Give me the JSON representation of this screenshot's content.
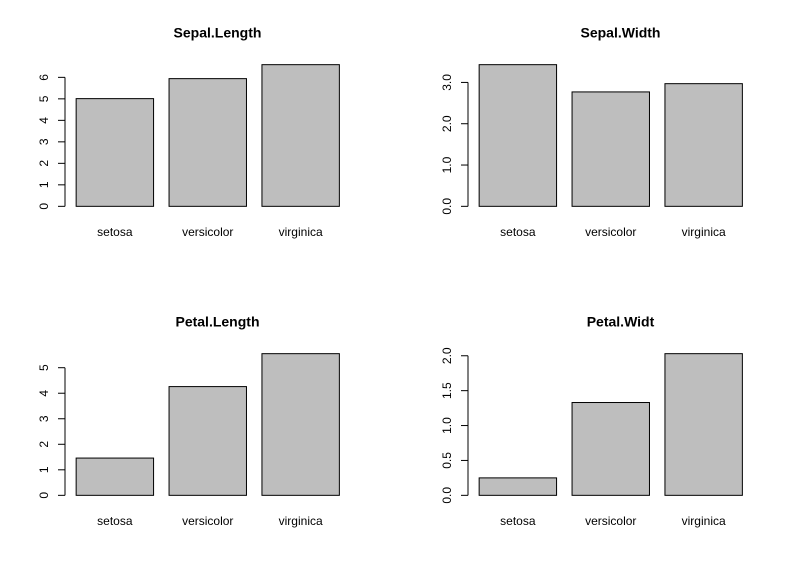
{
  "chart_data": [
    {
      "type": "bar",
      "title": "Sepal.Length",
      "categories": [
        "setosa",
        "versicolor",
        "virginica"
      ],
      "values": [
        5.01,
        5.94,
        6.59
      ],
      "color": "#bebebe",
      "ylim": [
        0,
        6.59
      ],
      "yticks": [
        0,
        1,
        2,
        3,
        4,
        5,
        6
      ]
    },
    {
      "type": "bar",
      "title": "Sepal.Width",
      "categories": [
        "setosa",
        "versicolor",
        "virginica"
      ],
      "values": [
        3.43,
        2.77,
        2.97
      ],
      "color": "#bebebe",
      "ylim": [
        0,
        3.43
      ],
      "yticks": [
        {
          "value": 0,
          "label": "0.0"
        },
        {
          "value": 1,
          "label": "1.0"
        },
        {
          "value": 2,
          "label": "2.0"
        },
        {
          "value": 3,
          "label": "3.0"
        }
      ]
    },
    {
      "type": "bar",
      "title": "Petal.Length",
      "categories": [
        "setosa",
        "versicolor",
        "virginica"
      ],
      "values": [
        1.46,
        4.26,
        5.55
      ],
      "color": "#bebebe",
      "ylim": [
        0,
        5.55
      ],
      "yticks": [
        0,
        1,
        2,
        3,
        4,
        5
      ]
    },
    {
      "type": "bar",
      "title": "Petal.Widt",
      "categories": [
        "setosa",
        "versicolor",
        "virginica"
      ],
      "values": [
        0.25,
        1.33,
        2.03
      ],
      "color": "#bebebe",
      "ylim": [
        0,
        2.03
      ],
      "yticks": [
        {
          "value": 0,
          "label": "0.0"
        },
        {
          "value": 0.5,
          "label": "0.5"
        },
        {
          "value": 1,
          "label": "1.0"
        },
        {
          "value": 1.5,
          "label": "1.5"
        },
        {
          "value": 2,
          "label": "2.0"
        }
      ]
    }
  ]
}
